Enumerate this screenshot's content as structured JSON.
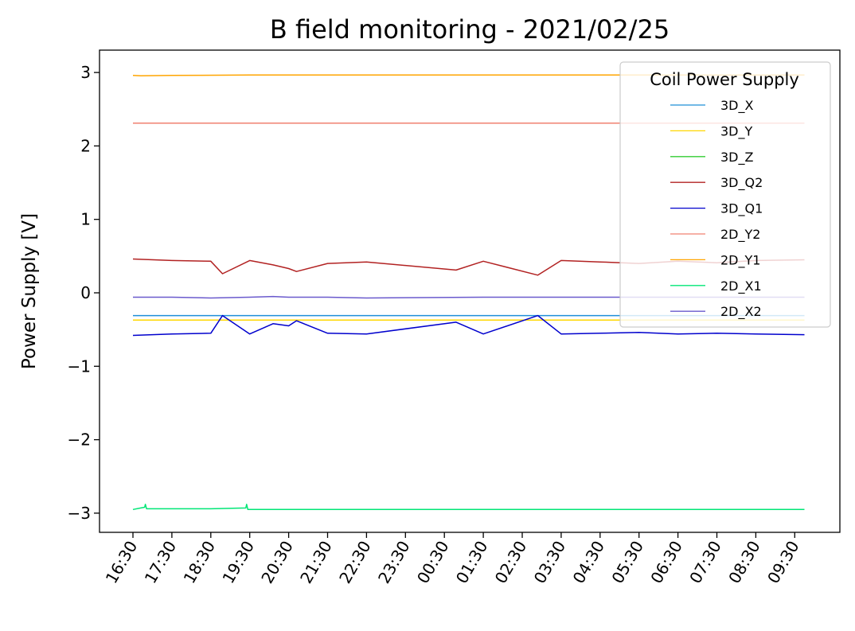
{
  "chart_data": {
    "type": "line",
    "title": "B field monitoring - 2021/02/25",
    "xlabel": "",
    "ylabel": "Power Supply [V]",
    "ylim": [
      -3.25,
      3.25
    ],
    "yticks": [
      3,
      2,
      1,
      0,
      -1,
      -2,
      -3
    ],
    "ytick_labels": [
      "3",
      "2",
      "1",
      "0",
      "−1",
      "−2",
      "−3"
    ],
    "x_categories": [
      "16:30",
      "17:30",
      "18:30",
      "19:30",
      "20:30",
      "21:30",
      "22:30",
      "23:30",
      "00:30",
      "01:30",
      "02:30",
      "03:30",
      "04:30",
      "05:30",
      "06:30",
      "07:30",
      "08:30",
      "09:30"
    ],
    "x_range": [
      0,
      17.25
    ],
    "grid": false,
    "legend": {
      "title": "Coil Power Supply",
      "placement": "upper right"
    },
    "series": [
      {
        "name": "3D_X",
        "color": "#1f8fd8",
        "x": [
          0,
          3,
          6,
          9,
          12,
          15,
          17.25
        ],
        "y": [
          -0.31,
          -0.31,
          -0.31,
          -0.31,
          -0.31,
          -0.31,
          -0.31
        ]
      },
      {
        "name": "3D_Y",
        "color": "#ffd700",
        "x": [
          0,
          3,
          6,
          9,
          12,
          15,
          17.25
        ],
        "y": [
          -0.37,
          -0.37,
          -0.37,
          -0.37,
          -0.37,
          -0.37,
          -0.37
        ]
      },
      {
        "name": "3D_Z",
        "color": "#32cd32",
        "x": [],
        "y": []
      },
      {
        "name": "3D_Q2",
        "color": "#b22222",
        "x": [
          0,
          1,
          2,
          2.3,
          3,
          3.6,
          4,
          4.2,
          5,
          6,
          8.3,
          9,
          10.4,
          11,
          12,
          13,
          14,
          15,
          16,
          17.25
        ],
        "y": [
          0.46,
          0.44,
          0.43,
          0.26,
          0.44,
          0.38,
          0.33,
          0.29,
          0.4,
          0.42,
          0.31,
          0.43,
          0.24,
          0.44,
          0.42,
          0.4,
          0.43,
          0.41,
          0.44,
          0.45
        ]
      },
      {
        "name": "3D_Q1",
        "color": "#0000cd",
        "x": [
          0,
          1,
          2,
          2.3,
          3,
          3.6,
          4,
          4.2,
          5,
          6,
          8.3,
          9,
          10.4,
          11,
          12,
          13,
          14,
          15,
          16,
          17.25
        ],
        "y": [
          -0.58,
          -0.56,
          -0.55,
          -0.31,
          -0.56,
          -0.42,
          -0.45,
          -0.38,
          -0.55,
          -0.56,
          -0.4,
          -0.56,
          -0.31,
          -0.56,
          -0.55,
          -0.54,
          -0.56,
          -0.55,
          -0.56,
          -0.57
        ]
      },
      {
        "name": "2D_Y2",
        "color": "#f08070",
        "x": [
          0,
          3,
          6,
          9,
          12,
          15,
          17.25
        ],
        "y": [
          2.31,
          2.31,
          2.31,
          2.31,
          2.31,
          2.31,
          2.31
        ]
      },
      {
        "name": "2D_Y1",
        "color": "#ffa500",
        "x": [
          0,
          0.2,
          1,
          3,
          6,
          9,
          12,
          15,
          17.25
        ],
        "y": [
          2.96,
          2.955,
          2.96,
          2.965,
          2.965,
          2.965,
          2.965,
          2.965,
          2.965
        ]
      },
      {
        "name": "2D_X1",
        "color": "#00e676",
        "x": [
          0,
          0.2,
          0.3,
          0.32,
          0.35,
          1,
          2,
          2.9,
          2.92,
          2.95,
          4,
          6,
          9,
          12,
          15,
          17.25
        ],
        "y": [
          -2.95,
          -2.93,
          -2.92,
          -2.88,
          -2.94,
          -2.94,
          -2.94,
          -2.93,
          -2.88,
          -2.95,
          -2.95,
          -2.95,
          -2.95,
          -2.95,
          -2.95,
          -2.95
        ]
      },
      {
        "name": "2D_X2",
        "color": "#6a5acd",
        "x": [
          0,
          1,
          2,
          3,
          3.6,
          4,
          5,
          6,
          9,
          12,
          15,
          17.25
        ],
        "y": [
          -0.06,
          -0.06,
          -0.07,
          -0.06,
          -0.05,
          -0.06,
          -0.06,
          -0.07,
          -0.06,
          -0.06,
          -0.06,
          -0.06
        ]
      }
    ]
  }
}
